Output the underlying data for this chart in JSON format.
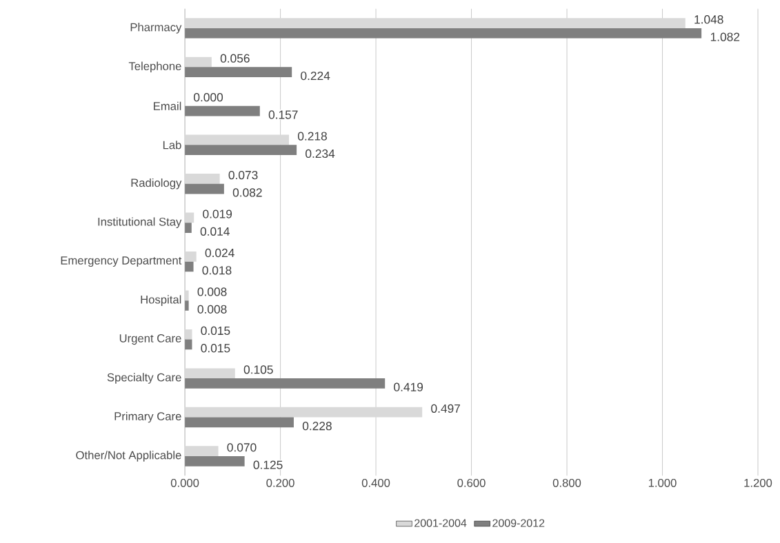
{
  "chart_data": {
    "type": "bar",
    "orientation": "horizontal",
    "categories": [
      "Pharmacy",
      "Telephone",
      "Email",
      "Lab",
      "Radiology",
      "Institutional Stay",
      "Emergency Department",
      "Hospital",
      "Urgent Care",
      "Specialty Care",
      "Primary Care",
      "Other/Not Applicable"
    ],
    "series": [
      {
        "name": "2001-2004",
        "color": "#d9d9d9",
        "values": [
          1.048,
          0.056,
          0.0,
          0.218,
          0.073,
          0.019,
          0.024,
          0.008,
          0.015,
          0.105,
          0.497,
          0.07
        ],
        "value_labels": [
          "1.048",
          "0.056",
          "0.000",
          "0.218",
          "0.073",
          "0.019",
          "0.024",
          "0.008",
          "0.015",
          "0.105",
          "0.497",
          "0.070"
        ]
      },
      {
        "name": "2009-2012",
        "color": "#7f7f7f",
        "values": [
          1.082,
          0.224,
          0.157,
          0.234,
          0.082,
          0.014,
          0.018,
          0.008,
          0.015,
          0.419,
          0.228,
          0.125
        ],
        "value_labels": [
          "1.082",
          "0.224",
          "0.157",
          "0.234",
          "0.082",
          "0.014",
          "0.018",
          "0.008",
          "0.015",
          "0.419",
          "0.228",
          "0.125"
        ]
      }
    ],
    "xlim": [
      0,
      1.2
    ],
    "xticks": [
      {
        "value": 0,
        "label": "0.000"
      },
      {
        "value": 0.2,
        "label": "0.200"
      },
      {
        "value": 0.4,
        "label": "0.400"
      },
      {
        "value": 0.6,
        "label": "0.600"
      },
      {
        "value": 0.8,
        "label": "0.800"
      },
      {
        "value": 1.0,
        "label": "1.000"
      },
      {
        "value": 1.2,
        "label": "1.200"
      }
    ],
    "grid": "x",
    "legend": "bottom"
  }
}
